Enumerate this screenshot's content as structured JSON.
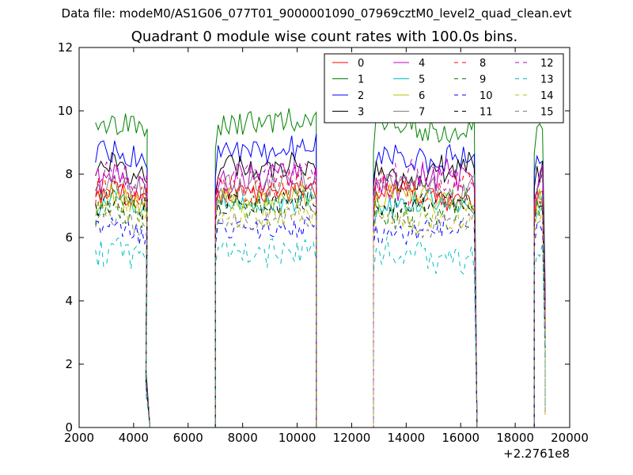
{
  "chart_data": {
    "type": "line",
    "suptitle": "Data file: modeM0/AS1G06_077T01_9000001090_07969cztM0_level2_quad_clean.evt",
    "title": "Quadrant 0 module wise count rates with 100.0s bins.",
    "xlabel": "",
    "ylabel": "",
    "xlim": [
      2000,
      20000
    ],
    "ylim": [
      0,
      12
    ],
    "x_offset_label": "+2.2761e8",
    "x_ticks": [
      {
        "value": 2000,
        "label": "2000"
      },
      {
        "value": 4000,
        "label": "4000"
      },
      {
        "value": 6000,
        "label": "6000"
      },
      {
        "value": 8000,
        "label": "8000"
      },
      {
        "value": 10000,
        "label": "10000"
      },
      {
        "value": 12000,
        "label": "12000"
      },
      {
        "value": 14000,
        "label": "14000"
      },
      {
        "value": 16000,
        "label": "16000"
      },
      {
        "value": 18000,
        "label": "18000"
      },
      {
        "value": 20000,
        "label": "20000"
      }
    ],
    "y_ticks": [
      {
        "value": 0,
        "label": "0"
      },
      {
        "value": 2,
        "label": "2"
      },
      {
        "value": 4,
        "label": "4"
      },
      {
        "value": 6,
        "label": "6"
      },
      {
        "value": 8,
        "label": "8"
      },
      {
        "value": 10,
        "label": "10"
      },
      {
        "value": 12,
        "label": "12"
      }
    ],
    "grid": false,
    "legend_position": "top-right",
    "bin_width": 100,
    "segments": [
      {
        "start": 2600,
        "end": 4500,
        "edge_start": 2600,
        "edge_end": 4600
      },
      {
        "start": 7000,
        "end": 10700,
        "edge_start": 7000,
        "edge_end": 10700
      },
      {
        "start": 12800,
        "end": 16500,
        "edge_start": 12800,
        "edge_end": 16600
      },
      {
        "start": 18700,
        "end": 19100,
        "edge_start": 18700,
        "edge_end": 19100
      }
    ],
    "series": [
      {
        "name": "0",
        "color": "#ff0000",
        "dash": "solid",
        "level": 7.3
      },
      {
        "name": "1",
        "color": "#008000",
        "dash": "solid",
        "level": 9.5
      },
      {
        "name": "2",
        "color": "#0000ff",
        "dash": "solid",
        "level": 8.6
      },
      {
        "name": "3",
        "color": "#000000",
        "dash": "solid",
        "level": 8.1
      },
      {
        "name": "4",
        "color": "#bf00bf",
        "dash": "solid",
        "level": 7.8
      },
      {
        "name": "5",
        "color": "#00bfbf",
        "dash": "solid",
        "level": 7.0
      },
      {
        "name": "6",
        "color": "#bfbf00",
        "dash": "solid",
        "level": 7.2
      },
      {
        "name": "7",
        "color": "#808080",
        "dash": "solid",
        "level": 7.6
      },
      {
        "name": "8",
        "color": "#ff0000",
        "dash": "dashed",
        "level": 7.5
      },
      {
        "name": "9",
        "color": "#008000",
        "dash": "dashed",
        "level": 6.9
      },
      {
        "name": "10",
        "color": "#0000ff",
        "dash": "dashed",
        "level": 6.2
      },
      {
        "name": "11",
        "color": "#000000",
        "dash": "dashed",
        "level": 7.0
      },
      {
        "name": "12",
        "color": "#bf00bf",
        "dash": "dashed",
        "level": 7.9
      },
      {
        "name": "13",
        "color": "#00bfbf",
        "dash": "dashed",
        "level": 5.4
      },
      {
        "name": "14",
        "color": "#bfbf00",
        "dash": "dashed",
        "level": 6.7
      },
      {
        "name": "15",
        "color": "#808080",
        "dash": "dashed",
        "level": 6.5
      }
    ]
  }
}
